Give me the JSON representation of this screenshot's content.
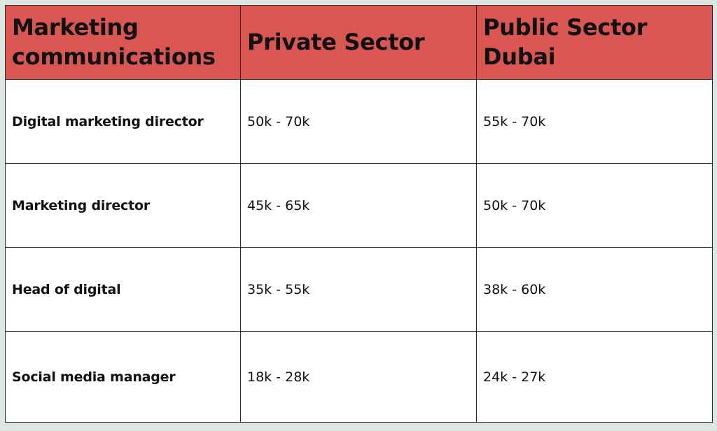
{
  "table": {
    "headers": [
      "Marketing communications",
      "Private Sector",
      "Public Sector Dubai"
    ],
    "rows": [
      {
        "role": "Digital marketing director",
        "private": "50k - 70k",
        "public": "55k - 70k"
      },
      {
        "role": "Marketing director",
        "private": "45k - 65k",
        "public": "50k - 70k"
      },
      {
        "role": "Head of digital",
        "private": "35k - 55k",
        "public": "38k - 60k"
      },
      {
        "role": "Social media manager",
        "private": "18k - 28k",
        "public": "24k - 27k"
      }
    ]
  },
  "colors": {
    "header_bg": "#d95652",
    "page_bg": "#dde6e0",
    "border": "#2b2b2b"
  }
}
